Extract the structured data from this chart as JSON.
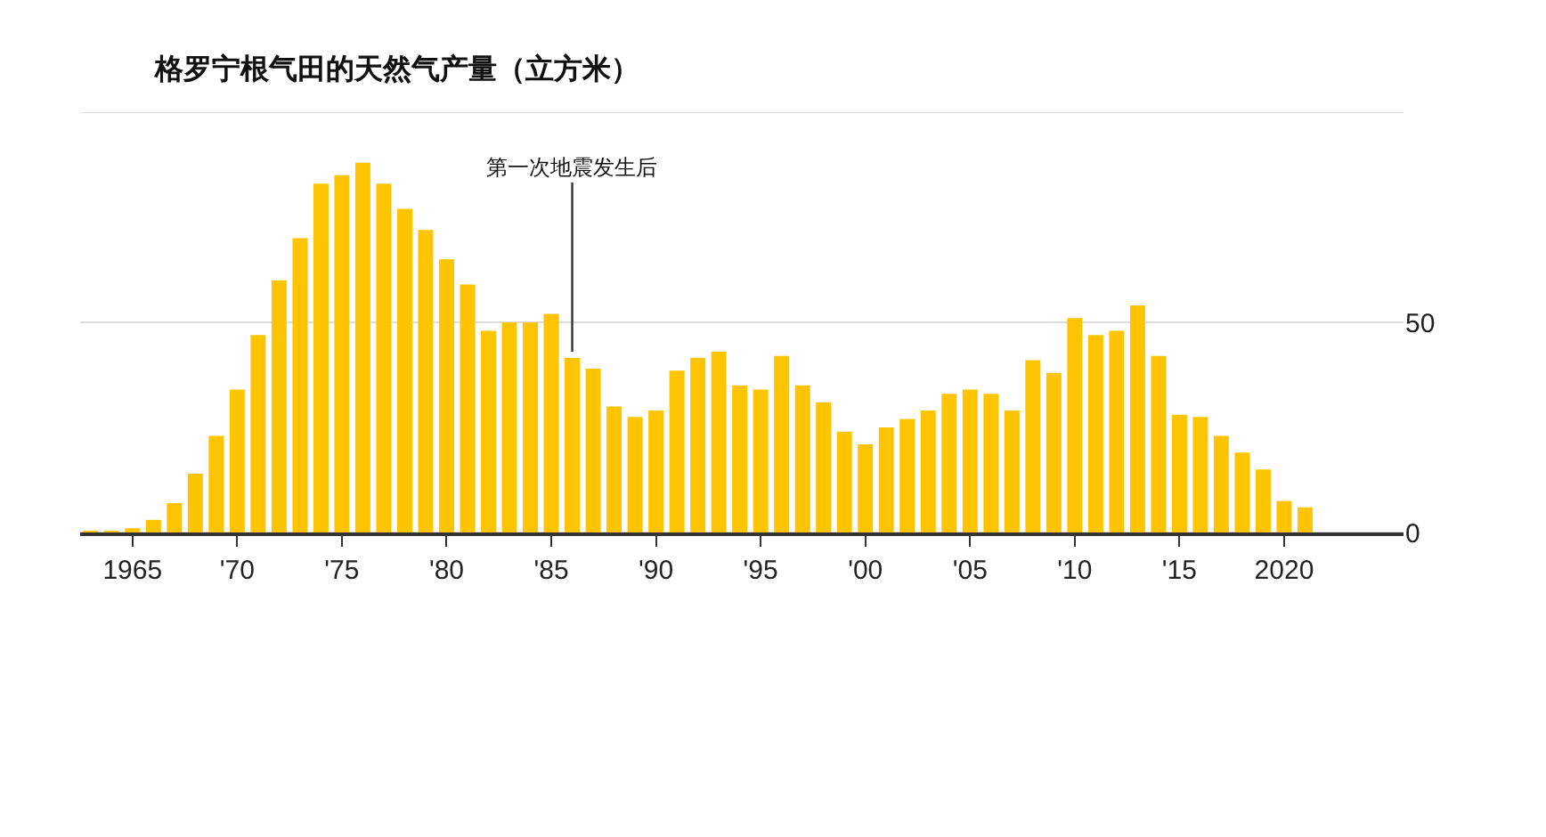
{
  "chart_data": {
    "type": "bar",
    "title": "格罗宁根气田的天然气产量（立方米）",
    "x": [
      1963,
      1964,
      1965,
      1966,
      1967,
      1968,
      1969,
      1970,
      1971,
      1972,
      1973,
      1974,
      1975,
      1976,
      1977,
      1978,
      1979,
      1980,
      1981,
      1982,
      1983,
      1984,
      1985,
      1986,
      1987,
      1988,
      1989,
      1990,
      1991,
      1992,
      1993,
      1994,
      1995,
      1996,
      1997,
      1998,
      1999,
      2000,
      2001,
      2002,
      2003,
      2004,
      2005,
      2006,
      2007,
      2008,
      2009,
      2010,
      2011,
      2012,
      2013,
      2014,
      2015,
      2016,
      2017,
      2018,
      2019,
      2020,
      2021
    ],
    "values": [
      0.3,
      0.3,
      1,
      3,
      7,
      14,
      23,
      34,
      47,
      60,
      70,
      83,
      85,
      88,
      83,
      77,
      72,
      65,
      59,
      48,
      50,
      50,
      52,
      41.5,
      39,
      30,
      27.5,
      29,
      38.5,
      41.5,
      43,
      35,
      34,
      42,
      35,
      31,
      24,
      21,
      25,
      27,
      29,
      33,
      34,
      33,
      29,
      41,
      38,
      51,
      47,
      48,
      54,
      42,
      28,
      27.5,
      23,
      19,
      15,
      7.5,
      6
    ],
    "color": "#ffc400",
    "xlim": [
      1962.5,
      2025.7
    ],
    "xticks": [
      {
        "value": 1965,
        "label": "1965"
      },
      {
        "value": 1970,
        "label": "'70"
      },
      {
        "value": 1975,
        "label": "'75"
      },
      {
        "value": 1980,
        "label": "'80"
      },
      {
        "value": 1985,
        "label": "'85"
      },
      {
        "value": 1990,
        "label": "'90"
      },
      {
        "value": 1995,
        "label": "'95"
      },
      {
        "value": 2000,
        "label": "'00"
      },
      {
        "value": 2005,
        "label": "'05"
      },
      {
        "value": 2010,
        "label": "'10"
      },
      {
        "value": 2015,
        "label": "'15"
      },
      {
        "value": 2020,
        "label": "2020"
      }
    ],
    "ylim": [
      0,
      100
    ],
    "yticks": [
      0,
      50,
      {
        "value": 100,
        "label": null
      }
    ],
    "grid": "y",
    "annotations": [
      {
        "text": "第一次地震发生后",
        "x": 1986,
        "y": 43
      }
    ]
  }
}
